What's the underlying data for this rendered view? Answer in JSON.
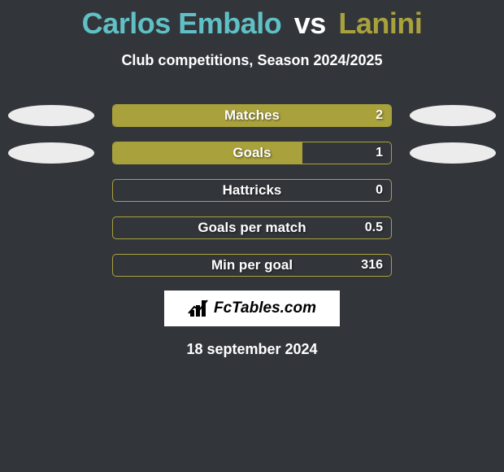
{
  "title": {
    "player1": "Carlos Embalo",
    "vs": "vs",
    "player2": "Lanini",
    "player1_color": "#5fc0c5",
    "player2_color": "#a9a13c",
    "vs_color": "#ffffff"
  },
  "subtitle": "Club competitions, Season 2024/2025",
  "background_color": "#32363b",
  "bar_border_color": "#a9a13c",
  "ellipse_left_color": "#ececec",
  "ellipse_right_color": "#ececec",
  "rows": [
    {
      "label": "Matches",
      "value": "2",
      "fill_color": "#a9a13c",
      "fill_pct": 100,
      "show_ellipses": true
    },
    {
      "label": "Goals",
      "value": "1",
      "fill_color": "#a9a13c",
      "fill_pct": 68,
      "show_ellipses": true
    },
    {
      "label": "Hattricks",
      "value": "0",
      "fill_color": "#a9a13c",
      "fill_pct": 0,
      "show_ellipses": false
    },
    {
      "label": "Goals per match",
      "value": "0.5",
      "fill_color": "#a9a13c",
      "fill_pct": 0,
      "show_ellipses": false
    },
    {
      "label": "Min per goal",
      "value": "316",
      "fill_color": "#a9a13c",
      "fill_pct": 0,
      "show_ellipses": false
    }
  ],
  "brand": {
    "text": "FcTables.com",
    "icon_name": "bar-chart-icon"
  },
  "date": "18 september 2024"
}
